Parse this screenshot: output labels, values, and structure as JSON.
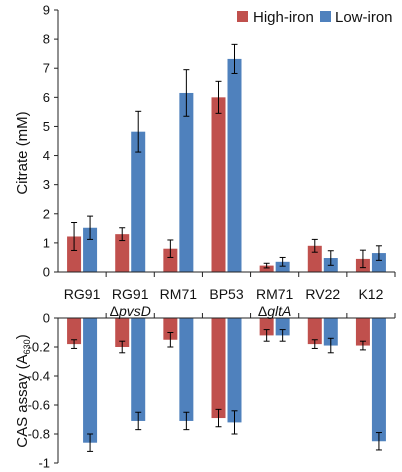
{
  "chart_data": [
    {
      "type": "bar",
      "categories": [
        "RG91",
        "RG91\nΔpvsD",
        "RM71",
        "BP53",
        "RM71\nΔgltA",
        "RV22",
        "K12"
      ],
      "series": [
        {
          "name": "High-iron",
          "color": "#c0504d",
          "values": [
            1.22,
            1.3,
            0.8,
            6.0,
            0.22,
            0.9,
            0.45
          ],
          "errors": [
            0.48,
            0.22,
            0.3,
            0.55,
            0.08,
            0.22,
            0.3
          ]
        },
        {
          "name": "Low-iron",
          "color": "#4f81bd",
          "values": [
            1.52,
            4.82,
            6.15,
            7.32,
            0.35,
            0.48,
            0.65
          ],
          "errors": [
            0.4,
            0.7,
            0.8,
            0.5,
            0.15,
            0.25,
            0.25
          ]
        }
      ],
      "ylabel": "Citrate (mM)",
      "ylim": [
        0,
        9
      ],
      "yticks": [
        "0",
        "1",
        "2",
        "3",
        "4",
        "5",
        "6",
        "7",
        "8",
        "9"
      ],
      "legend": "top-right"
    },
    {
      "type": "bar",
      "categories": [
        "RG91",
        "RG91\nΔpvsD",
        "RM71",
        "BP53",
        "RM71\nΔgltA",
        "RV22",
        "K12"
      ],
      "series": [
        {
          "name": "High-iron",
          "color": "#c0504d",
          "values": [
            -0.18,
            -0.2,
            -0.15,
            -0.69,
            -0.12,
            -0.18,
            -0.19
          ],
          "errors": [
            0.03,
            0.04,
            0.05,
            0.06,
            0.04,
            0.03,
            0.03
          ]
        },
        {
          "name": "Low-iron",
          "color": "#4f81bd",
          "values": [
            -0.86,
            -0.71,
            -0.71,
            -0.72,
            -0.12,
            -0.19,
            -0.85
          ],
          "errors": [
            0.06,
            0.06,
            0.06,
            0.08,
            0.04,
            0.05,
            0.06
          ]
        }
      ],
      "ylabel": "CAS assay (A630)",
      "ylim": [
        -1,
        0
      ],
      "yticks": [
        "0",
        "-0.2",
        "-0.4",
        "-0.6",
        "-0.8",
        "-1"
      ]
    }
  ],
  "category_labels": [
    {
      "line1": "RG91",
      "line2": ""
    },
    {
      "line1": "RG91",
      "line2_prefix": "Δ",
      "line2": "pvsD"
    },
    {
      "line1": "RM71",
      "line2": ""
    },
    {
      "line1": "BP53",
      "line2": ""
    },
    {
      "line1": "RM71",
      "line2_prefix": "Δ",
      "line2": "gltA"
    },
    {
      "line1": "RV22",
      "line2": ""
    },
    {
      "line1": "K12",
      "line2": ""
    }
  ],
  "labels": {
    "top_ylabel": "Citrate (mM)",
    "bottom_ylabel_main": "CAS assay (A",
    "bottom_ylabel_sub": "630",
    "bottom_ylabel_close": ")",
    "legend_high": "High-iron",
    "legend_low": "Low-iron"
  }
}
